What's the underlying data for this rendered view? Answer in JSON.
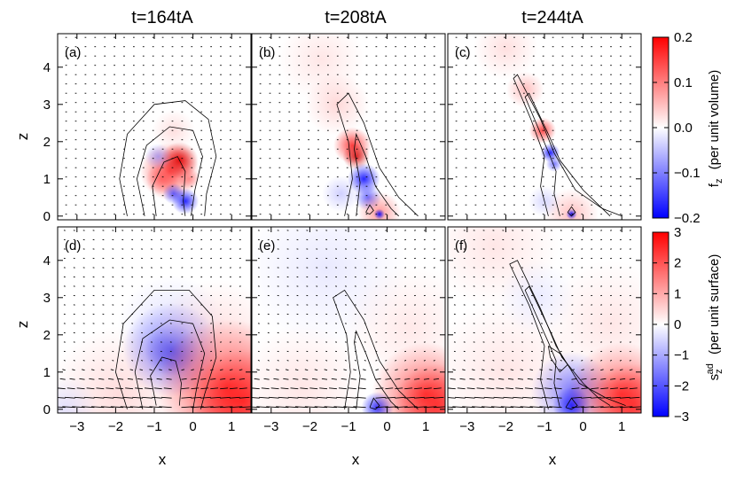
{
  "figure": {
    "column_titles": [
      "t=164tA",
      "t=208tA",
      "t=244tA"
    ],
    "colors": {
      "negative": "#0000ff",
      "zero": "#ffffff",
      "positive": "#ff0000",
      "contour": "#000000",
      "arrow": "#000000"
    }
  },
  "chart_data": [
    {
      "type": "heatmap",
      "row": "top",
      "panels": [
        "(a)",
        "(b)",
        "(c)"
      ],
      "quantity_label": "f",
      "quantity_subscript": "z",
      "units_label": "(per unit volume)",
      "colorbar_ticks": [
        "0.2",
        "0.1",
        "0.0",
        "-0.1",
        "-0.2"
      ],
      "colorbar_tick_values": [
        0.2,
        0.1,
        0.0,
        -0.1,
        -0.2
      ],
      "color_range": [
        -0.2,
        0.2
      ],
      "xlabel": "x",
      "ylabel": "z",
      "x_ticks": [
        "-3",
        "-2",
        "-1",
        "0",
        "1"
      ],
      "y_ticks": [
        "0",
        "1",
        "2",
        "3",
        "4"
      ],
      "xlim": [
        -3.5,
        1.5
      ],
      "ylim": [
        -0.1,
        4.9
      ],
      "grid": false,
      "overlays": [
        "velocity arrows",
        "field-line contours"
      ]
    },
    {
      "type": "heatmap",
      "row": "bottom",
      "panels": [
        "(d)",
        "(e)",
        "(f)"
      ],
      "quantity_label": "s",
      "quantity_superscript": "ad",
      "quantity_subscript": "z",
      "units_label": "(per unit surface)",
      "colorbar_ticks": [
        "3",
        "2",
        "1",
        "0",
        "-1",
        "-2",
        "-3"
      ],
      "colorbar_tick_values": [
        3,
        2,
        1,
        0,
        -1,
        -2,
        -3
      ],
      "color_range": [
        -3,
        3
      ],
      "xlabel": "x",
      "ylabel": "z",
      "x_ticks": [
        "-3",
        "-2",
        "-1",
        "0",
        "1"
      ],
      "y_ticks": [
        "0",
        "1",
        "2",
        "3",
        "4"
      ],
      "xlim": [
        -3.5,
        1.5
      ],
      "ylim": [
        -0.1,
        4.9
      ],
      "grid": false,
      "overlays": [
        "velocity arrows",
        "field-line contours"
      ]
    }
  ]
}
